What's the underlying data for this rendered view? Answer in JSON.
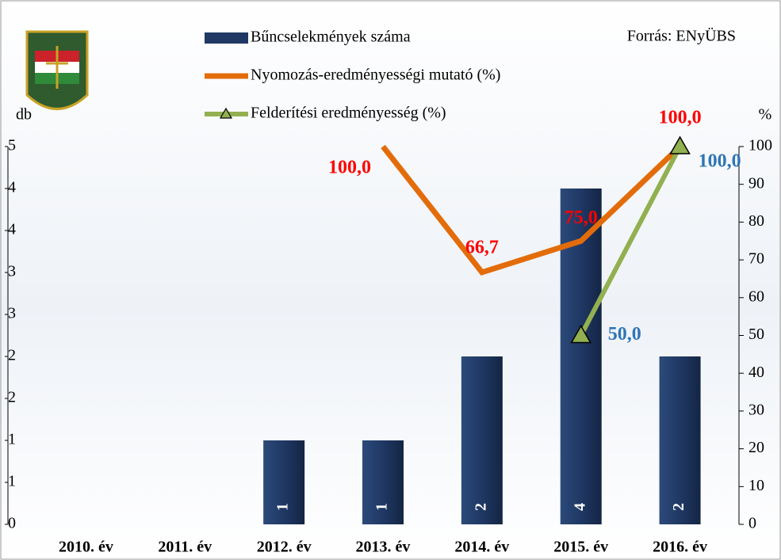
{
  "chart_data": {
    "type": "bar",
    "source": "Forrás: ENyÜBS",
    "y_label": "db",
    "y2_label": "%",
    "categories": [
      "2010. év",
      "2011. év",
      "2012. év",
      "2013. év",
      "2014. év",
      "2015. év",
      "2016. év"
    ],
    "ylim": [
      0,
      4.5
    ],
    "yticks": [
      {
        "value": 0,
        "label": "0"
      },
      {
        "value": 0.5,
        "label": "1"
      },
      {
        "value": 1,
        "label": "1"
      },
      {
        "value": 1.5,
        "label": "2"
      },
      {
        "value": 2,
        "label": "2"
      },
      {
        "value": 2.5,
        "label": "3"
      },
      {
        "value": 3,
        "label": "3"
      },
      {
        "value": 3.5,
        "label": "4"
      },
      {
        "value": 4,
        "label": "4"
      },
      {
        "value": 4.5,
        "label": "5"
      }
    ],
    "y2lim": [
      0,
      100
    ],
    "y2ticks": [
      0,
      10,
      20,
      30,
      40,
      50,
      60,
      70,
      80,
      90,
      100
    ],
    "series": [
      {
        "name": "Bűncselekmények száma",
        "type": "bar",
        "color": "#1f3864",
        "values": [
          0,
          0,
          1,
          1,
          2,
          4,
          2
        ]
      },
      {
        "name": "Nyomozás-eredményességi mutató (%)",
        "type": "line",
        "axis": "y2",
        "color": "#e36c0a",
        "values": [
          null,
          null,
          null,
          100,
          66.7,
          75,
          100
        ],
        "value_labels": [
          null,
          null,
          null,
          "100,0",
          "66,7",
          "75,0",
          "100,0"
        ]
      },
      {
        "name": "Felderítési eredményesség (%)",
        "type": "line",
        "axis": "y2",
        "color": "#92b050",
        "values": [
          null,
          null,
          null,
          null,
          null,
          50,
          100
        ],
        "value_labels": [
          null,
          null,
          null,
          null,
          null,
          "50,0",
          "100,0"
        ]
      }
    ]
  }
}
